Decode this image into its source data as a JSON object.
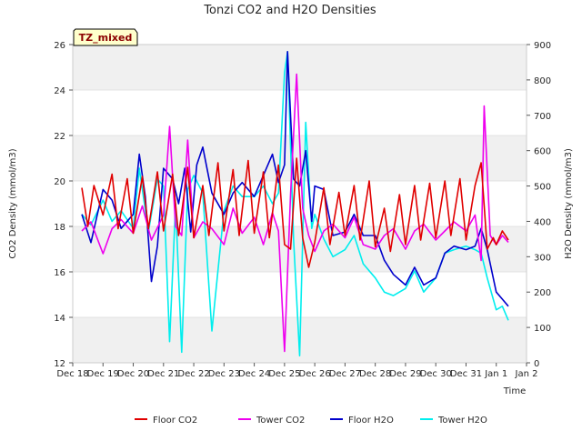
{
  "chart_data": {
    "type": "line",
    "title": "Tonzi CO2 and H2O Densities",
    "xlabel": "Time",
    "ylabel_left": "CO2 Density (mmol/m3)",
    "ylabel_right": "H2O Density (mmol/m3)",
    "site_badge": "TZ_mixed",
    "x_ticks": [
      "Dec 18",
      "Dec 19",
      "Dec 20",
      "Dec 21",
      "Dec 22",
      "Dec 23",
      "Dec 24",
      "Dec 25",
      "Dec 26",
      "Dec 27",
      "Dec 28",
      "Dec 29",
      "Dec 30",
      "Dec 31",
      "Jan 1",
      "Jan 2"
    ],
    "xlim_days": [
      0,
      15
    ],
    "ylim_left": [
      12,
      26
    ],
    "ylim_right": [
      0,
      900
    ],
    "yticks_left": [
      12,
      14,
      16,
      18,
      20,
      22,
      24,
      26
    ],
    "yticks_right": [
      0,
      100,
      200,
      300,
      400,
      500,
      600,
      700,
      800,
      900
    ],
    "grid": "horizontal bands",
    "legend_position": "bottom",
    "series": [
      {
        "name": "Floor CO2",
        "axis": "left",
        "color": "#e00000",
        "x": [
          0.3,
          0.5,
          0.7,
          1.0,
          1.3,
          1.5,
          1.8,
          2.0,
          2.3,
          2.5,
          2.8,
          3.0,
          3.3,
          3.5,
          3.8,
          4.0,
          4.3,
          4.5,
          4.8,
          5.0,
          5.3,
          5.5,
          5.8,
          6.0,
          6.3,
          6.5,
          6.8,
          7.0,
          7.2,
          7.4,
          7.6,
          7.8,
          8.0,
          8.3,
          8.5,
          8.8,
          9.0,
          9.3,
          9.5,
          9.8,
          10.0,
          10.3,
          10.5,
          10.8,
          11.0,
          11.3,
          11.5,
          11.8,
          12.0,
          12.3,
          12.5,
          12.8,
          13.0,
          13.3,
          13.5,
          13.7,
          13.9,
          14.0,
          14.2,
          14.4
        ],
        "values": [
          19.7,
          18.0,
          19.8,
          18.5,
          20.3,
          17.9,
          20.1,
          17.7,
          20.2,
          17.9,
          20.4,
          17.8,
          20.3,
          17.6,
          20.6,
          17.5,
          19.8,
          17.6,
          20.8,
          17.8,
          20.5,
          17.6,
          20.9,
          17.7,
          20.4,
          17.5,
          20.7,
          17.2,
          17.0,
          21.0,
          17.5,
          16.2,
          17.3,
          19.7,
          17.2,
          19.5,
          17.6,
          19.8,
          17.4,
          20.0,
          17.1,
          18.8,
          16.9,
          19.4,
          17.2,
          19.8,
          17.4,
          19.9,
          17.5,
          20.0,
          17.6,
          20.1,
          17.4,
          19.8,
          20.8,
          17.0,
          17.5,
          17.2,
          17.8,
          17.4
        ]
      },
      {
        "name": "Tower CO2",
        "axis": "left",
        "color": "#ee00ee",
        "x": [
          0.3,
          0.6,
          1.0,
          1.3,
          1.6,
          2.0,
          2.3,
          2.6,
          3.0,
          3.2,
          3.4,
          3.6,
          3.8,
          4.0,
          4.3,
          4.6,
          5.0,
          5.3,
          5.6,
          6.0,
          6.3,
          6.6,
          6.8,
          7.0,
          7.2,
          7.4,
          7.6,
          7.8,
          8.0,
          8.3,
          8.6,
          9.0,
          9.3,
          9.6,
          10.0,
          10.3,
          10.6,
          11.0,
          11.3,
          11.6,
          12.0,
          12.3,
          12.6,
          13.0,
          13.3,
          13.5,
          13.6,
          13.8,
          14.0,
          14.2,
          14.4
        ],
        "values": [
          17.8,
          18.2,
          16.8,
          17.9,
          18.3,
          17.7,
          18.9,
          17.4,
          18.5,
          22.4,
          18.0,
          17.6,
          21.8,
          17.5,
          18.2,
          17.9,
          17.2,
          18.8,
          17.7,
          18.4,
          17.2,
          18.6,
          17.8,
          12.5,
          19.4,
          24.7,
          18.8,
          17.6,
          16.9,
          17.8,
          18.1,
          17.5,
          18.4,
          17.2,
          17.0,
          17.6,
          17.9,
          17.0,
          17.8,
          18.1,
          17.4,
          17.8,
          18.2,
          17.8,
          18.5,
          16.5,
          23.3,
          17.6,
          17.2,
          17.6,
          17.3
        ]
      },
      {
        "name": "Floor H2O",
        "axis": "right",
        "color": "#0000cc",
        "x": [
          0.3,
          0.6,
          1.0,
          1.3,
          1.6,
          2.0,
          2.2,
          2.4,
          2.6,
          2.8,
          3.0,
          3.3,
          3.5,
          3.7,
          3.9,
          4.1,
          4.3,
          4.6,
          5.0,
          5.3,
          5.6,
          6.0,
          6.3,
          6.6,
          6.8,
          7.0,
          7.1,
          7.3,
          7.5,
          7.7,
          7.9,
          8.0,
          8.3,
          8.6,
          9.0,
          9.3,
          9.6,
          10.0,
          10.3,
          10.6,
          11.0,
          11.3,
          11.6,
          12.0,
          12.3,
          12.6,
          13.0,
          13.3,
          13.5,
          13.7,
          13.9,
          14.0,
          14.2,
          14.4
        ],
        "values": [
          420,
          340,
          490,
          460,
          380,
          420,
          590,
          470,
          230,
          330,
          550,
          520,
          450,
          550,
          370,
          560,
          610,
          480,
          420,
          480,
          510,
          470,
          530,
          590,
          510,
          560,
          880,
          520,
          500,
          600,
          400,
          500,
          490,
          360,
          370,
          420,
          360,
          360,
          290,
          250,
          220,
          270,
          220,
          240,
          310,
          330,
          320,
          330,
          380,
          320,
          240,
          200,
          180,
          160
        ]
      },
      {
        "name": "Tower H2O",
        "axis": "right",
        "color": "#00eeee",
        "x": [
          0.3,
          0.6,
          1.0,
          1.3,
          1.6,
          2.0,
          2.2,
          2.5,
          2.8,
          3.0,
          3.2,
          3.4,
          3.6,
          3.8,
          4.0,
          4.3,
          4.6,
          5.0,
          5.3,
          5.6,
          6.0,
          6.3,
          6.6,
          6.8,
          7.0,
          7.1,
          7.3,
          7.5,
          7.7,
          7.9,
          8.0,
          8.3,
          8.6,
          9.0,
          9.3,
          9.6,
          10.0,
          10.3,
          10.6,
          11.0,
          11.3,
          11.6,
          12.0,
          12.3,
          12.6,
          13.0,
          13.3,
          13.5,
          13.7,
          13.9,
          14.0,
          14.2,
          14.4
        ],
        "values": [
          420,
          390,
          460,
          400,
          430,
          380,
          550,
          370,
          520,
          500,
          60,
          450,
          30,
          490,
          530,
          480,
          90,
          430,
          500,
          470,
          470,
          500,
          450,
          480,
          820,
          880,
          350,
          20,
          680,
          380,
          420,
          350,
          300,
          320,
          360,
          280,
          240,
          200,
          190,
          210,
          260,
          200,
          240,
          310,
          320,
          330,
          320,
          310,
          240,
          180,
          150,
          160,
          120
        ]
      }
    ]
  }
}
